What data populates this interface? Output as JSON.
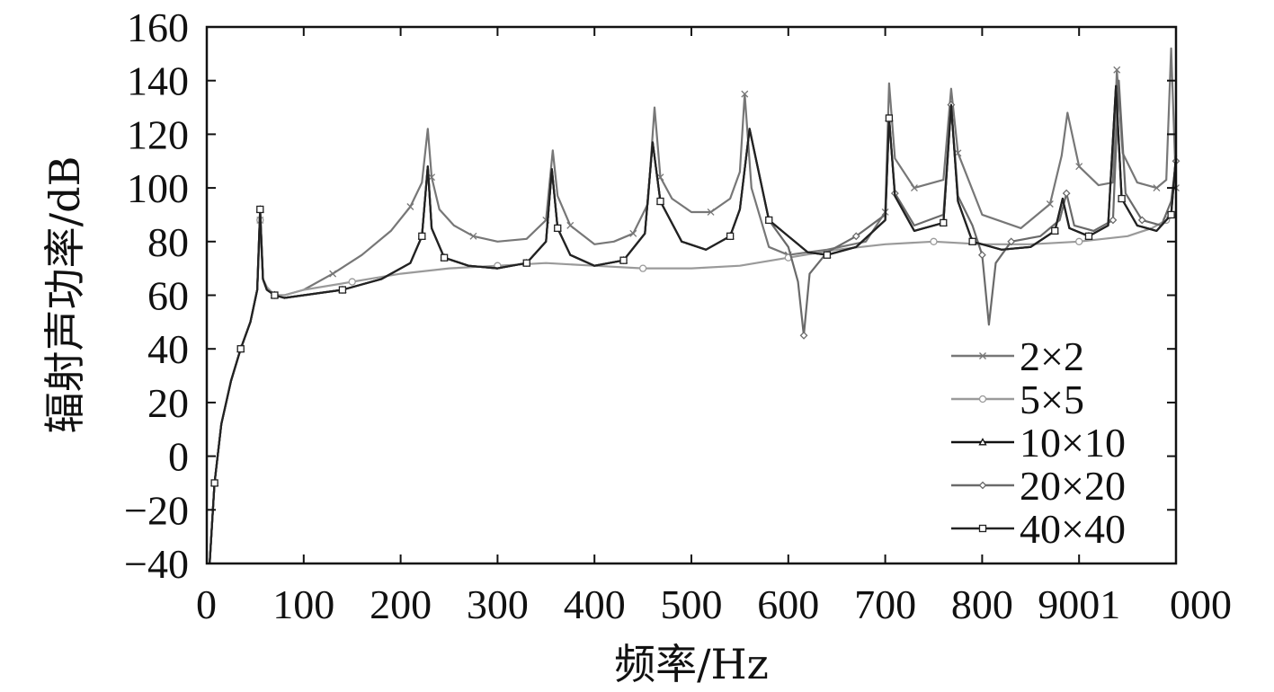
{
  "chart_data": {
    "type": "line",
    "title": "",
    "xlabel": "频率/Hz",
    "ylabel": "辐射声功率/dB",
    "xlim": [
      0,
      1000
    ],
    "ylim": [
      -40,
      160
    ],
    "x_tick_labels": [
      "0",
      "100",
      "200",
      "300",
      "400",
      "500",
      "600",
      "700",
      "800",
      "9001",
      "000"
    ],
    "y_ticks": [
      -40,
      -20,
      0,
      20,
      40,
      60,
      80,
      100,
      120,
      140,
      160
    ],
    "y_tick_labels": [
      "−40",
      "−20",
      "0",
      "20",
      "40",
      "60",
      "80",
      "100",
      "120",
      "140",
      "160"
    ],
    "grid": false,
    "legend_position": "bottom-right",
    "series": [
      {
        "name": "2×2",
        "marker": "x",
        "color": "#777777",
        "x": [
          3,
          8,
          15,
          25,
          35,
          45,
          52,
          55,
          58,
          62,
          70,
          80,
          100,
          130,
          160,
          190,
          210,
          222,
          228,
          232,
          240,
          255,
          275,
          300,
          330,
          350,
          357,
          362,
          375,
          400,
          420,
          440,
          455,
          462,
          468,
          480,
          500,
          520,
          540,
          550,
          555,
          562,
          580,
          600,
          640,
          680,
          700,
          704,
          710,
          730,
          760,
          768,
          775,
          800,
          840,
          870,
          882,
          888,
          900,
          920,
          935,
          939,
          945,
          960,
          980,
          990,
          995,
          1000
        ],
        "y": [
          -40,
          -10,
          12,
          28,
          40,
          50,
          62,
          88,
          66,
          63,
          60,
          60,
          62,
          68,
          75,
          84,
          93,
          102,
          122,
          104,
          92,
          86,
          82,
          80,
          81,
          88,
          114,
          97,
          86,
          79,
          80,
          83,
          94,
          130,
          104,
          96,
          91,
          91,
          96,
          106,
          135,
          100,
          78,
          75,
          77,
          80,
          91,
          139,
          111,
          100,
          103,
          137,
          113,
          90,
          85,
          94,
          112,
          128,
          108,
          101,
          102,
          144,
          113,
          102,
          100,
          103,
          152,
          100
        ]
      },
      {
        "name": "5×5",
        "marker": "o",
        "color": "#9a9a9a",
        "x": [
          3,
          8,
          15,
          25,
          35,
          45,
          52,
          55,
          58,
          62,
          70,
          80,
          100,
          150,
          200,
          250,
          300,
          350,
          400,
          450,
          500,
          550,
          600,
          650,
          700,
          750,
          800,
          850,
          900,
          950,
          975,
          990,
          1000
        ],
        "y": [
          -40,
          -10,
          12,
          28,
          40,
          50,
          62,
          88,
          66,
          63,
          60,
          60,
          62,
          65,
          68,
          70,
          71,
          72,
          71,
          70,
          70,
          71,
          74,
          77,
          79,
          80,
          79,
          79,
          80,
          82,
          85,
          88,
          90
        ]
      },
      {
        "name": "10×10",
        "marker": "triangle",
        "color": "#111111",
        "x": [
          3,
          8,
          15,
          25,
          35,
          45,
          52,
          55,
          58,
          62,
          70,
          80,
          100,
          140,
          180,
          210,
          222,
          228,
          232,
          245,
          270,
          300,
          330,
          350,
          356,
          362,
          375,
          400,
          430,
          452,
          460,
          468,
          490,
          515,
          540,
          550,
          560,
          580,
          600,
          620,
          640,
          670,
          700,
          704,
          710,
          730,
          760,
          768,
          775,
          790,
          820,
          850,
          875,
          883,
          890,
          910,
          930,
          938,
          944,
          960,
          980,
          995,
          1000
        ],
        "y": [
          -40,
          -10,
          12,
          28,
          40,
          50,
          62,
          92,
          66,
          62,
          60,
          59,
          60,
          62,
          66,
          72,
          82,
          108,
          85,
          74,
          71,
          70,
          72,
          80,
          107,
          85,
          75,
          71,
          73,
          83,
          117,
          95,
          80,
          77,
          82,
          92,
          122,
          88,
          82,
          76,
          75,
          78,
          88,
          126,
          97,
          84,
          87,
          131,
          95,
          80,
          77,
          78,
          84,
          96,
          85,
          82,
          86,
          138,
          96,
          86,
          84,
          90,
          112
        ]
      },
      {
        "name": "20×20",
        "marker": "diamond",
        "color": "#6a6a6a",
        "x": [
          3,
          8,
          15,
          25,
          35,
          45,
          52,
          55,
          58,
          62,
          70,
          80,
          100,
          140,
          180,
          210,
          222,
          228,
          232,
          245,
          270,
          300,
          330,
          350,
          356,
          362,
          375,
          400,
          430,
          452,
          460,
          468,
          490,
          515,
          540,
          550,
          560,
          580,
          600,
          610,
          616,
          622,
          640,
          670,
          700,
          704,
          710,
          730,
          760,
          768,
          775,
          790,
          800,
          807,
          814,
          830,
          860,
          880,
          887,
          895,
          915,
          935,
          941,
          948,
          965,
          985,
          995,
          1000
        ],
        "y": [
          -40,
          -10,
          12,
          28,
          40,
          50,
          62,
          92,
          66,
          62,
          60,
          59,
          60,
          62,
          66,
          72,
          82,
          108,
          85,
          74,
          71,
          70,
          72,
          80,
          107,
          85,
          75,
          71,
          73,
          83,
          117,
          95,
          80,
          77,
          82,
          92,
          122,
          88,
          78,
          65,
          45,
          68,
          76,
          82,
          90,
          126,
          98,
          86,
          90,
          131,
          97,
          86,
          75,
          49,
          72,
          80,
          82,
          88,
          98,
          86,
          84,
          88,
          140,
          98,
          88,
          86,
          95,
          110
        ]
      },
      {
        "name": "40×40",
        "marker": "square",
        "color": "#222222",
        "x": [
          3,
          8,
          15,
          25,
          35,
          45,
          52,
          55,
          58,
          62,
          70,
          80,
          100,
          140,
          180,
          210,
          222,
          228,
          232,
          245,
          270,
          300,
          330,
          350,
          356,
          362,
          375,
          400,
          430,
          452,
          460,
          468,
          490,
          515,
          540,
          550,
          560,
          580,
          600,
          620,
          640,
          670,
          700,
          704,
          710,
          730,
          760,
          768,
          775,
          790,
          820,
          850,
          875,
          883,
          890,
          910,
          930,
          938,
          944,
          960,
          980,
          995,
          1000
        ],
        "y": [
          -40,
          -10,
          12,
          28,
          40,
          50,
          62,
          92,
          66,
          62,
          60,
          59,
          60,
          62,
          66,
          72,
          82,
          108,
          85,
          74,
          71,
          70,
          72,
          80,
          107,
          85,
          75,
          71,
          73,
          83,
          117,
          95,
          80,
          77,
          82,
          92,
          122,
          88,
          82,
          76,
          75,
          78,
          88,
          126,
          97,
          84,
          87,
          131,
          95,
          80,
          77,
          78,
          84,
          96,
          85,
          82,
          86,
          138,
          96,
          86,
          84,
          90,
          112
        ]
      }
    ]
  }
}
